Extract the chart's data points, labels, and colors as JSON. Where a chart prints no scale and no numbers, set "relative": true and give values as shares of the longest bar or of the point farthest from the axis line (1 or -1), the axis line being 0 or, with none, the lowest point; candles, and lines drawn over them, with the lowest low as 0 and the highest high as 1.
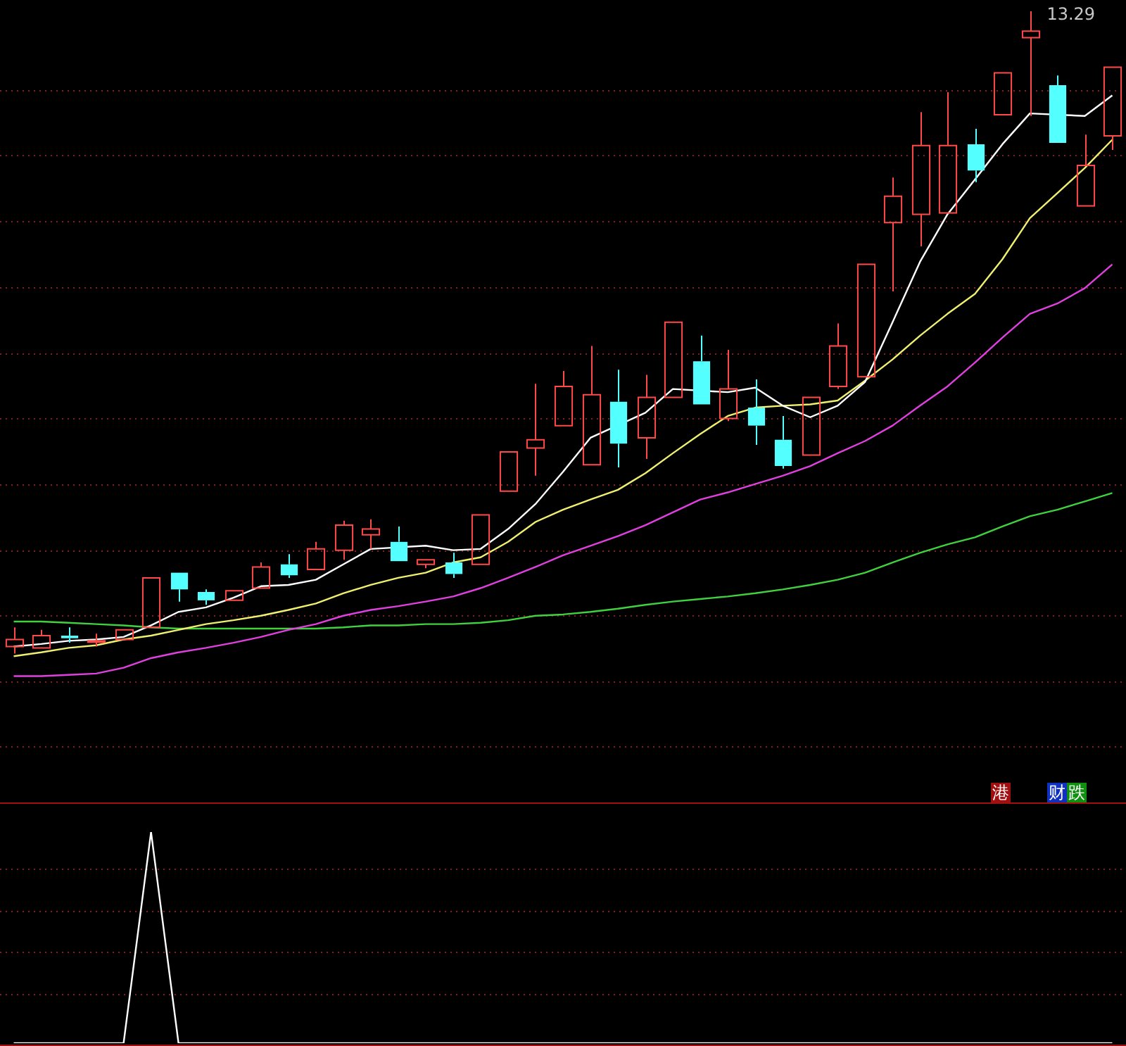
{
  "chart_data": [
    {
      "type": "candlestick",
      "relative": true,
      "legend": false,
      "ref_lines": [
        {
          "axis": "y",
          "value": 0.878,
          "color": "#802020",
          "line_style": "dotted"
        },
        {
          "axis": "y",
          "value": 0.776,
          "color": "#802020",
          "line_style": "dotted"
        },
        {
          "axis": "y",
          "value": 0.673,
          "color": "#802020",
          "line_style": "dotted"
        },
        {
          "axis": "y",
          "value": 0.571,
          "color": "#802020",
          "line_style": "dotted"
        },
        {
          "axis": "y",
          "value": 0.468,
          "color": "#802020",
          "line_style": "dotted"
        },
        {
          "axis": "y",
          "value": 0.366,
          "color": "#802020",
          "line_style": "dotted"
        },
        {
          "axis": "y",
          "value": 0.264,
          "color": "#802020",
          "line_style": "dotted"
        },
        {
          "axis": "y",
          "value": 0.161,
          "color": "#802020",
          "line_style": "dotted"
        },
        {
          "axis": "y",
          "value": 0.059,
          "color": "#802020",
          "line_style": "dotted"
        },
        {
          "axis": "y",
          "value": -0.044,
          "color": "#802020",
          "line_style": "dotted"
        },
        {
          "axis": "y",
          "value": -0.144,
          "color": "#802020",
          "line_style": "dotted"
        }
      ],
      "categories": [
        null,
        null,
        null,
        null,
        null,
        null,
        null,
        null,
        null,
        null,
        null,
        null,
        null,
        null,
        null,
        null,
        null,
        null,
        null,
        null,
        null,
        null,
        null,
        null,
        null,
        null,
        null,
        null,
        null,
        null,
        null,
        null,
        null,
        null,
        null,
        null,
        null,
        null,
        null,
        null,
        null
      ],
      "ohlc": [
        [
          0.011,
          0.041,
          0,
          0.022
        ],
        [
          0.009,
          0.037,
          0.009,
          0.028
        ],
        [
          0.028,
          0.041,
          0.017,
          0.024
        ],
        [
          0.02,
          0.031,
          0.011,
          0.02
        ],
        [
          0.022,
          0.037,
          0.022,
          0.037
        ],
        [
          0.041,
          0.118,
          0.041,
          0.118
        ],
        [
          0.126,
          0.126,
          0.081,
          0.1
        ],
        [
          0.096,
          0.1,
          0.076,
          0.083
        ],
        [
          0.083,
          0.098,
          0.083,
          0.098
        ],
        [
          0.102,
          0.142,
          0.102,
          0.135
        ],
        [
          0.139,
          0.155,
          0.118,
          0.122
        ],
        [
          0.131,
          0.174,
          0.131,
          0.163
        ],
        [
          0.161,
          0.207,
          0.146,
          0.2
        ],
        [
          0.185,
          0.209,
          0.163,
          0.194
        ],
        [
          0.174,
          0.198,
          0.144,
          0.144
        ],
        [
          0.139,
          0.146,
          0.133,
          0.146
        ],
        [
          0.142,
          0.157,
          0.118,
          0.124
        ],
        [
          0.139,
          0.216,
          0.139,
          0.216
        ],
        [
          0.253,
          0.314,
          0.253,
          0.314
        ],
        [
          0.32,
          0.42,
          0.277,
          0.333
        ],
        [
          0.355,
          0.44,
          0.355,
          0.416
        ],
        [
          0.294,
          0.479,
          0.294,
          0.403
        ],
        [
          0.392,
          0.442,
          0.29,
          0.327
        ],
        [
          0.336,
          0.434,
          0.303,
          0.399
        ],
        [
          0.399,
          0.516,
          0.399,
          0.516
        ],
        [
          0.455,
          0.495,
          0.388,
          0.388
        ],
        [
          0.366,
          0.473,
          0.362,
          0.412
        ],
        [
          0.383,
          0.427,
          0.325,
          0.355
        ],
        [
          0.333,
          0.37,
          0.288,
          0.292
        ],
        [
          0.309,
          0.399,
          0.309,
          0.399
        ],
        [
          0.416,
          0.514,
          0.412,
          0.479
        ],
        [
          0.431,
          0.606,
          0.431,
          0.606
        ],
        [
          0.671,
          0.741,
          0.564,
          0.712
        ],
        [
          0.684,
          0.843,
          0.634,
          0.791
        ],
        [
          0.686,
          0.874,
          0.686,
          0.791
        ],
        [
          0.793,
          0.817,
          0.734,
          0.752
        ],
        [
          0.839,
          0.904,
          0.839,
          0.904
        ],
        [
          0.959,
          1,
          0.837,
          0.969
        ],
        [
          0.885,
          0.9,
          0.795,
          0.795
        ],
        [
          0.697,
          0.808,
          0.697,
          0.76
        ],
        [
          0.806,
          0.913,
          0.784,
          0.913
        ]
      ],
      "series": [
        {
          "type": "line",
          "color": "#ffffff",
          "values": [
            0.011,
            0.015,
            0.02,
            0.022,
            0.026,
            0.044,
            0.065,
            0.072,
            0.087,
            0.105,
            0.107,
            0.115,
            0.139,
            0.163,
            null,
            0.168,
            0.161,
            0.163,
            0.194,
            0.233,
            0.283,
            0.336,
            null,
            0.375,
            0.412,
            null,
            0.407,
            0.414,
            0.386,
            0.368,
            0.386,
            0.423,
            0.516,
            0.61,
            0.684,
            0.738,
            0.793,
            0.841,
            null,
            0.837,
            0.869
          ]
        },
        {
          "type": "line",
          "color": "#f0f070",
          "values": [
            -0.004,
            0.002,
            0.009,
            0.013,
            0.022,
            0.028,
            0.037,
            0.046,
            0.052,
            0.059,
            0.068,
            0.078,
            0.094,
            0.107,
            0.118,
            0.126,
            0.142,
            0.15,
            0.174,
            0.205,
            0.224,
            0.24,
            0.255,
            0.281,
            0.312,
            0.342,
            0.37,
            0.383,
            0.386,
            0.388,
            0.394,
            0.425,
            0.458,
            0.495,
            0.529,
            0.56,
            0.614,
            0.678,
            0.717,
            0.756,
            0.8
          ]
        },
        {
          "type": "line",
          "color": "#e040e0",
          "values": [
            -0.035,
            -0.035,
            -0.033,
            -0.031,
            -0.022,
            -0.007,
            0.002,
            0.009,
            0.017,
            0.026,
            0.037,
            0.046,
            0.059,
            0.068,
            0.074,
            0.081,
            0.089,
            0.102,
            0.118,
            0.135,
            0.153,
            0.168,
            0.183,
            0.2,
            0.22,
            0.24,
            0.251,
            0.264,
            0.277,
            0.292,
            0.312,
            0.331,
            0.355,
            0.386,
            0.416,
            0.453,
            0.492,
            0.529,
            0.545,
            0.569,
            0.606
          ]
        },
        {
          "type": "line",
          "color": "#40d040",
          "values": [
            0.05,
            0.05,
            0.048,
            0.046,
            0.044,
            0.041,
            0.039,
            0.039,
            0.039,
            0.039,
            0.039,
            0.039,
            0.041,
            0.044,
            0.044,
            0.046,
            0.046,
            0.048,
            0.052,
            0.059,
            0.061,
            0.065,
            0.07,
            0.076,
            0.081,
            0.085,
            0.089,
            0.094,
            0.1,
            0.107,
            0.115,
            0.126,
            0.142,
            0.157,
            0.17,
            0.181,
            0.198,
            0.214,
            0.224,
            0.237,
            0.25
          ]
        }
      ],
      "annotations": [
        "13.29",
        "港",
        "财",
        "跌"
      ]
    },
    {
      "type": "line",
      "relative": true,
      "legend": false,
      "ref_lines": [
        {
          "axis": "y",
          "value": 0.824,
          "color": "#802020",
          "line_style": "dotted"
        },
        {
          "axis": "y",
          "value": 0.628,
          "color": "#802020",
          "line_style": "dotted"
        },
        {
          "axis": "y",
          "value": 0.432,
          "color": "#802020",
          "line_style": "dotted"
        },
        {
          "axis": "y",
          "value": 0.236,
          "color": "#802020",
          "line_style": "dotted"
        }
      ],
      "categories": [
        null,
        null,
        null,
        null,
        null,
        null,
        null,
        null,
        null,
        null,
        null,
        null,
        null,
        null,
        null,
        null,
        null,
        null,
        null,
        null,
        null,
        null,
        null,
        null,
        null,
        null,
        null,
        null,
        null,
        null,
        null,
        null,
        null,
        null,
        null,
        null,
        null,
        null,
        null,
        null,
        null
      ],
      "series": [
        {
          "color": "#ffffff",
          "values": [
            0,
            0,
            0,
            0,
            0,
            1,
            0,
            0,
            0,
            0,
            0,
            0,
            0,
            0,
            0,
            0,
            0,
            0,
            0,
            0,
            0,
            0,
            0,
            0,
            0,
            0,
            0,
            0,
            0,
            0,
            0,
            0,
            0,
            0,
            0,
            0,
            0,
            0,
            0,
            0,
            0
          ]
        }
      ]
    }
  ]
}
